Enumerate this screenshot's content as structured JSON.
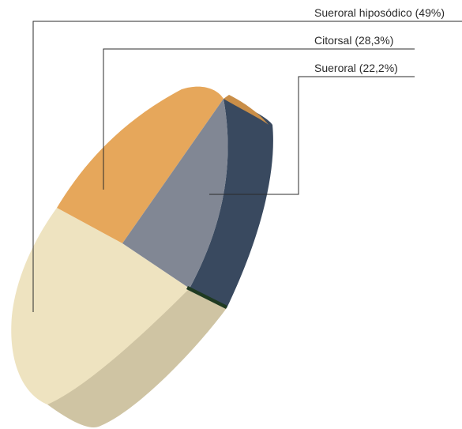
{
  "chart_data": {
    "type": "pie",
    "title": "",
    "slices": [
      {
        "label": "Sueroral hiposódico (49%)",
        "value": 49.0,
        "color": "#EEE3C0",
        "side_color": "#CFC4A3"
      },
      {
        "label": "Citorsal (28,3%)",
        "value": 28.3,
        "color": "#E6A75B",
        "side_color": "#C98E48"
      },
      {
        "label": "Sueroral (22,2%)",
        "value": 22.2,
        "color": "#818794",
        "side_color": "#39495F"
      }
    ],
    "style": "3d-tilted",
    "legend": "callout-lines"
  }
}
